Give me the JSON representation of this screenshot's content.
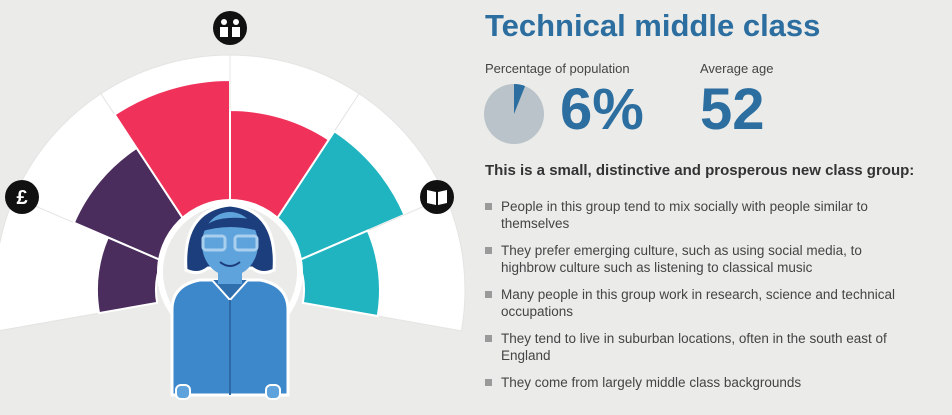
{
  "header": {
    "title": "Technical middle class"
  },
  "stats": [
    {
      "label": "Percentage of population",
      "value": 6,
      "value_label": "6%"
    },
    {
      "label": "Average age",
      "value": 52
    }
  ],
  "description": {
    "heading": "This is a small, distinctive and prosperous new class group:",
    "bullets": [
      "People in this group tend to mix socially with people similar to themselves",
      "They prefer emerging culture, such as using social media, to highbrow culture such as listening to classical music",
      "Many people in this group work in research, science and technical occupations",
      "They tend to live in suburban locations, often in the south east of England",
      "They come from largely middle class backgrounds"
    ]
  }
}
